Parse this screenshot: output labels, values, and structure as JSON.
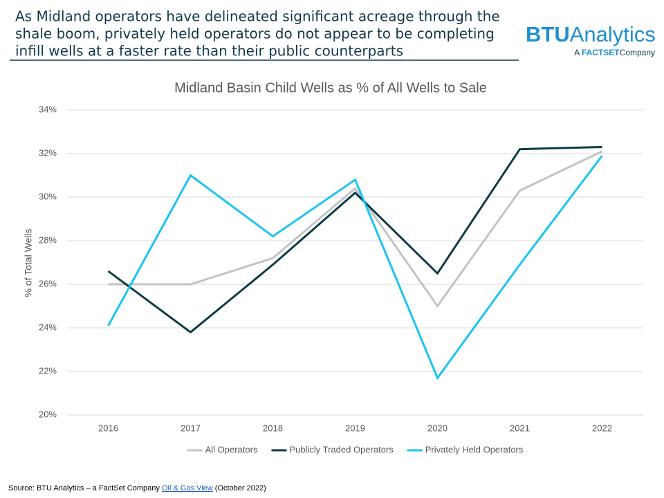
{
  "header": {
    "lines": [
      "As Midland operators have delineated significant acreage through the",
      "shale boom, privately held operators do not appear to be completing",
      "infill wells at a faster rate than their public counterparts"
    ]
  },
  "logo": {
    "brand": "BTU",
    "name": "Analytics",
    "tagline_prefix": "A",
    "tagline_brand": "FACTSET",
    "tagline_suffix": "Company"
  },
  "source": {
    "text": "Source: BTU Analytics – a FactSet Company",
    "link": "Oil & Gas View",
    "date": "(October 2022)"
  },
  "chart_data": {
    "type": "line",
    "title": "Midland Basin Child Wells as % of All Wells to Sale",
    "y_label": "% of Total Wells",
    "categories": [
      "2016",
      "2017",
      "2018",
      "2019",
      "2020",
      "2021",
      "2022"
    ],
    "series": [
      {
        "name": "All Operators",
        "color": "#c3c3c3",
        "values": [
          26.0,
          26.0,
          27.2,
          30.4,
          25.0,
          30.3,
          32.1
        ]
      },
      {
        "name": "Publicly Traded Operators",
        "color": "#0d3b48",
        "values": [
          26.6,
          23.8,
          26.9,
          30.2,
          26.5,
          32.2,
          32.3
        ]
      },
      {
        "name": "Privately Held Operators",
        "color": "#1ac4f2",
        "values": [
          24.1,
          31.0,
          28.2,
          30.8,
          21.7,
          26.9,
          31.9
        ]
      }
    ],
    "ylim": [
      20,
      34
    ],
    "yticks": [
      {
        "value": 20,
        "label": "20%"
      },
      {
        "value": 22,
        "label": "22%"
      },
      {
        "value": 24,
        "label": "24%"
      },
      {
        "value": 26,
        "label": "26%"
      },
      {
        "value": 28,
        "label": "28%"
      },
      {
        "value": 30,
        "label": "30%"
      },
      {
        "value": 32,
        "label": "32%"
      },
      {
        "value": 34,
        "label": "34%"
      }
    ],
    "grid": true,
    "legend": "bottom"
  }
}
